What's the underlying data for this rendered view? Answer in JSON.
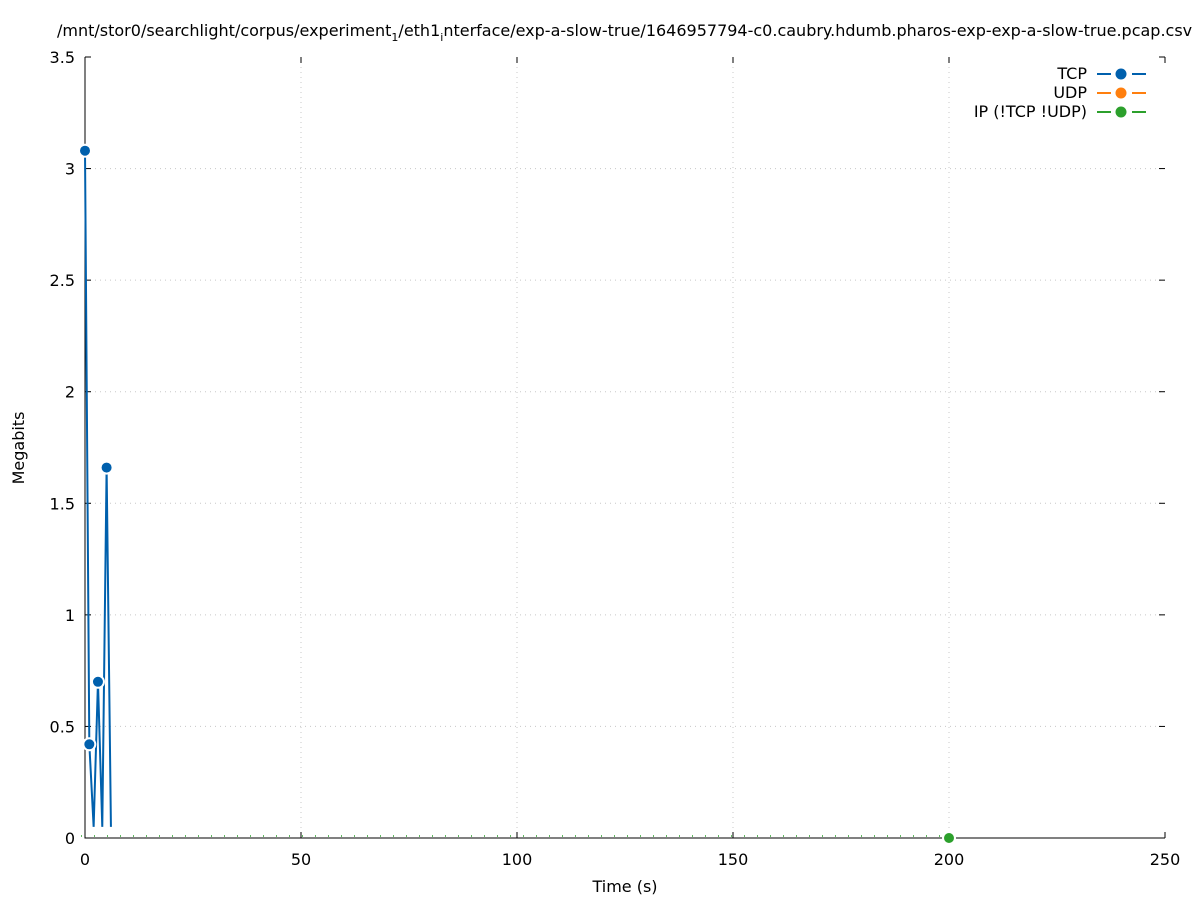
{
  "chart_data": {
    "type": "line",
    "title": "/mnt/stor0/searchlight/corpus/experiment",
    "title_sub1": "1",
    "title_mid": "/eth1",
    "title_sub2": "i",
    "title_end": "nterface/exp-a-slow-true/1646957794-c0.caubry.hdumb.pharos-exp-exp-a-slow-true.pcap.csv",
    "xlabel": "Time (s)",
    "ylabel": "Megabits",
    "xlim": [
      0,
      250
    ],
    "ylim": [
      0,
      3.5
    ],
    "xticks": [
      0,
      50,
      100,
      150,
      200,
      250
    ],
    "yticks": [
      0,
      0.5,
      1,
      1.5,
      2,
      2.5,
      3,
      3.5
    ],
    "grid": true,
    "legend_position": "top-right",
    "series": [
      {
        "name": "TCP",
        "color": "#0060ad",
        "x": [
          0,
          1,
          2,
          3,
          4,
          5,
          6
        ],
        "y": [
          3.08,
          0.42,
          0.05,
          0.7,
          0.05,
          1.66,
          0.05
        ],
        "marked": [
          true,
          true,
          false,
          true,
          false,
          true,
          false
        ]
      },
      {
        "name": "UDP",
        "color": "#ff7f0e",
        "x": [],
        "y": [],
        "marked": []
      },
      {
        "name": "IP (!TCP  !UDP)",
        "color": "#2ca02c",
        "x": [
          0,
          200
        ],
        "y": [
          0,
          0
        ],
        "marked": [
          false,
          true
        ]
      }
    ]
  }
}
